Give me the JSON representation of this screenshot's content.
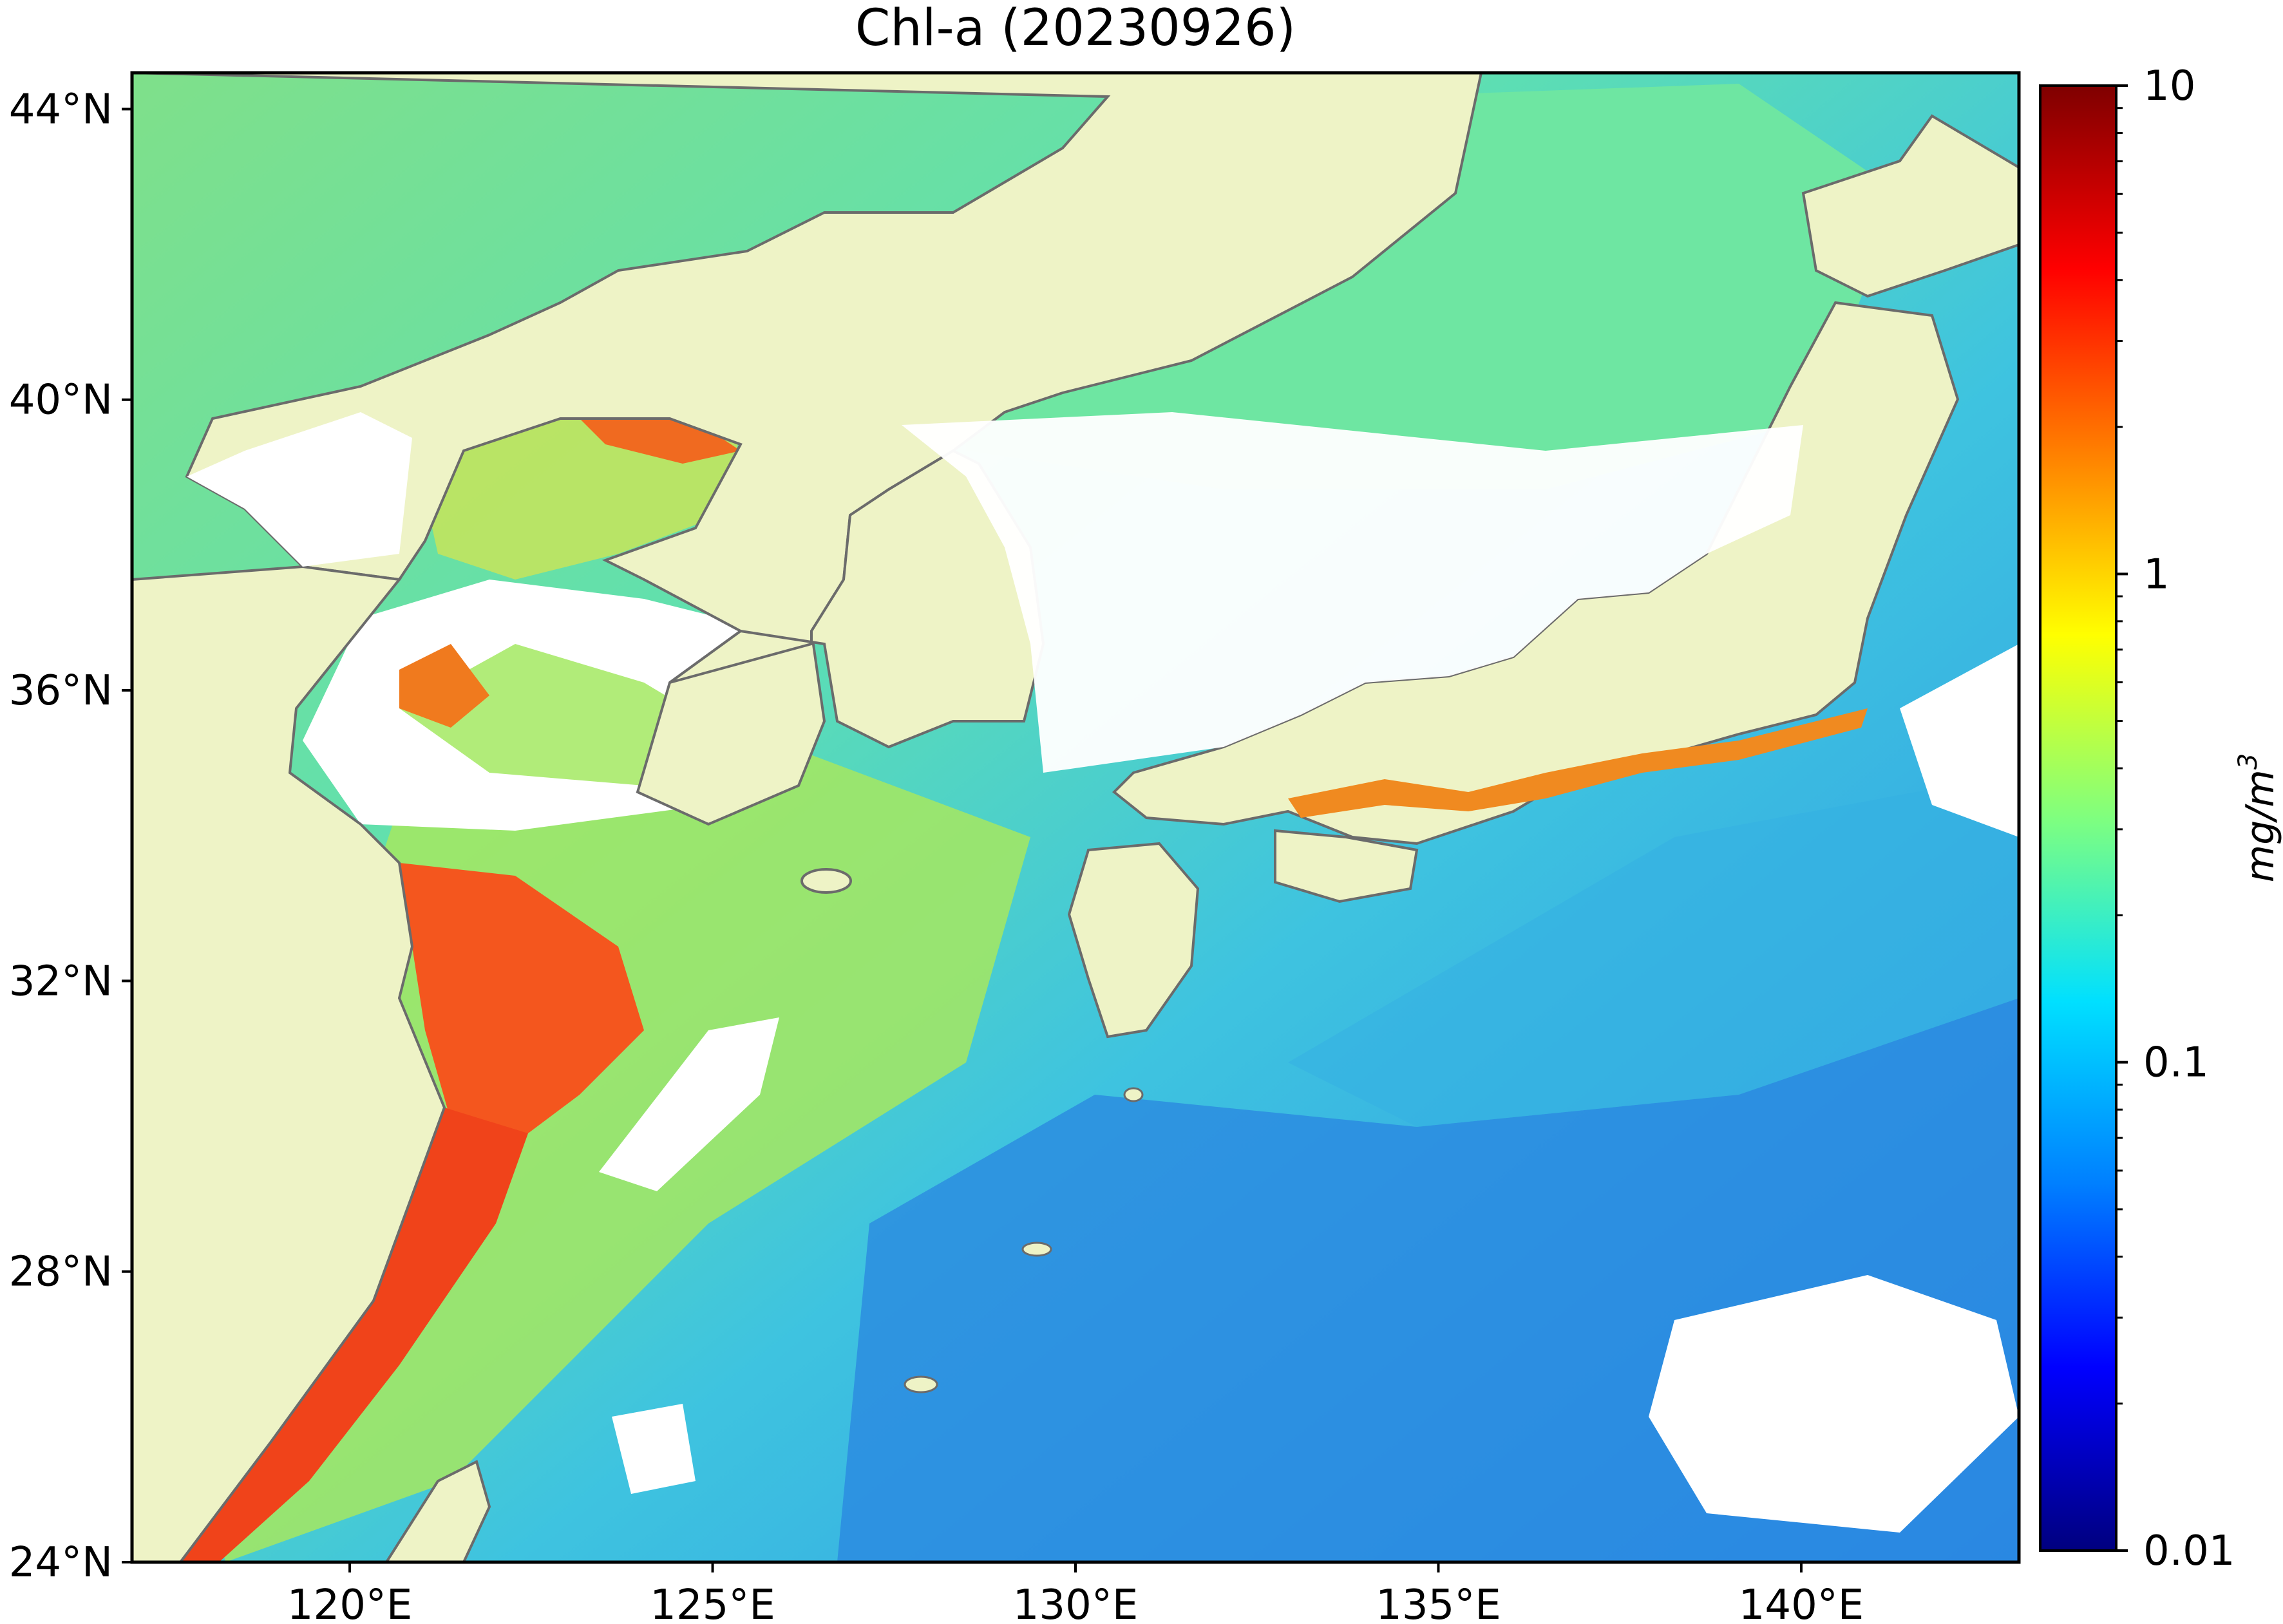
{
  "title": "Chl-a (20230926)",
  "map": {
    "lon_range": [
      117,
      143
    ],
    "lat_range": [
      24,
      44.5
    ],
    "lat_ticks": [
      {
        "value": 44,
        "label": "44°N"
      },
      {
        "value": 40,
        "label": "40°N"
      },
      {
        "value": 36,
        "label": "36°N"
      },
      {
        "value": 32,
        "label": "32°N"
      },
      {
        "value": 28,
        "label": "28°N"
      },
      {
        "value": 24,
        "label": "24°N"
      }
    ],
    "lon_ticks": [
      {
        "value": 120,
        "label": "120°E"
      },
      {
        "value": 125,
        "label": "125°E"
      },
      {
        "value": 130,
        "label": "130°E"
      },
      {
        "value": 135,
        "label": "135°E"
      },
      {
        "value": 140,
        "label": "140°E"
      }
    ],
    "colors": {
      "land": "#eef3c6",
      "coastline": "#6b6b6b",
      "no_data": "#ffffff",
      "ocean_open": "#2f9be0",
      "ocean_mid": "#4ee0c6",
      "coastal_high": "#f2451a",
      "coastal_mid": "#f7a21a"
    }
  },
  "colorbar": {
    "scale": "log",
    "min": 0.01,
    "max": 10,
    "ticks": [
      {
        "value": 10,
        "label": "10"
      },
      {
        "value": 1,
        "label": "1"
      },
      {
        "value": 0.1,
        "label": "0.1"
      },
      {
        "value": 0.01,
        "label": "0.01"
      }
    ],
    "unit_label": "mg/m",
    "unit_superscript": "3",
    "colormap": [
      "#00007f",
      "#0000ff",
      "#007fff",
      "#00e0ff",
      "#7fff7f",
      "#ffff00",
      "#ff7f00",
      "#ff0000",
      "#7f0000"
    ]
  }
}
